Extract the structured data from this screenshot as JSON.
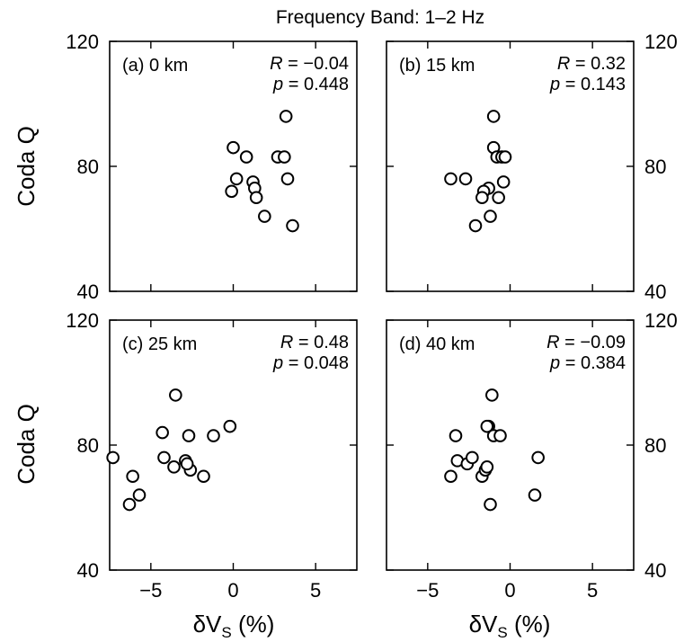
{
  "figure_title": "Frequency Band: 1–2 Hz",
  "ylabel": "Coda Q",
  "xlabel_main": "δV",
  "xlabel_sub": "S",
  "xlabel_unit": " (%)",
  "chart_data": [
    {
      "type": "scatter",
      "label": "(a) 0 km",
      "r_text": "= −0.04",
      "p_text": "= 0.448",
      "xlim": [
        -7.5,
        7.5
      ],
      "ylim": [
        40,
        120
      ],
      "xticks": [
        "−5",
        "0",
        "5"
      ],
      "yticks": [
        "40",
        "80",
        "120"
      ],
      "x": [
        0.0,
        0.2,
        0.8,
        1.2,
        1.3,
        1.4,
        1.9,
        2.7,
        3.1,
        3.2,
        3.3,
        3.6,
        -0.1
      ],
      "y": [
        86,
        76,
        83,
        75,
        73,
        70,
        64,
        83,
        83,
        96,
        76,
        61,
        72
      ]
    },
    {
      "type": "scatter",
      "label": "(b) 15 km",
      "r_text": "= 0.32",
      "p_text": "= 0.143",
      "xlim": [
        -7.5,
        7.5
      ],
      "ylim": [
        40,
        120
      ],
      "xticks": [
        "−5",
        "0",
        "5"
      ],
      "yticks": [
        "40",
        "80",
        "120"
      ],
      "x": [
        -1.0,
        -1.0,
        -0.8,
        -0.5,
        -0.3,
        -0.4,
        -0.7,
        -1.3,
        -1.6,
        -1.7,
        -2.1,
        -2.7,
        -3.6,
        -1.2
      ],
      "y": [
        96,
        86,
        83,
        83,
        83,
        75,
        70,
        73,
        72,
        70,
        61,
        76,
        76,
        64
      ]
    },
    {
      "type": "scatter",
      "label": "(c) 25 km",
      "r_text": "= 0.48",
      "p_text": "= 0.048",
      "xlim": [
        -7.5,
        7.5
      ],
      "ylim": [
        40,
        120
      ],
      "xticks": [
        "−5",
        "0",
        "5"
      ],
      "yticks": [
        "40",
        "80",
        "120"
      ],
      "x": [
        -7.3,
        -6.1,
        -5.7,
        -6.3,
        -4.3,
        -4.2,
        -3.6,
        -3.5,
        -2.9,
        -2.6,
        -2.7,
        -1.8,
        -1.2,
        -0.2,
        -2.8
      ],
      "y": [
        76,
        70,
        64,
        61,
        84,
        76,
        73,
        96,
        75,
        72,
        83,
        70,
        83,
        86,
        74
      ]
    },
    {
      "type": "scatter",
      "label": "(d) 40 km",
      "r_text": "= −0.09",
      "p_text": "= 0.384",
      "xlim": [
        -7.5,
        7.5
      ],
      "ylim": [
        40,
        120
      ],
      "xticks": [
        "−5",
        "0",
        "5"
      ],
      "yticks": [
        "40",
        "80",
        "120"
      ],
      "x": [
        -3.6,
        -3.2,
        -3.3,
        -2.6,
        -2.3,
        -1.7,
        -1.5,
        -1.4,
        -1.2,
        -1.3,
        -1.0,
        -0.6,
        -1.1,
        1.5,
        1.7,
        -1.4
      ],
      "y": [
        70,
        75,
        83,
        74,
        76,
        70,
        72,
        73,
        61,
        86,
        83,
        83,
        96,
        64,
        76,
        86
      ]
    }
  ]
}
